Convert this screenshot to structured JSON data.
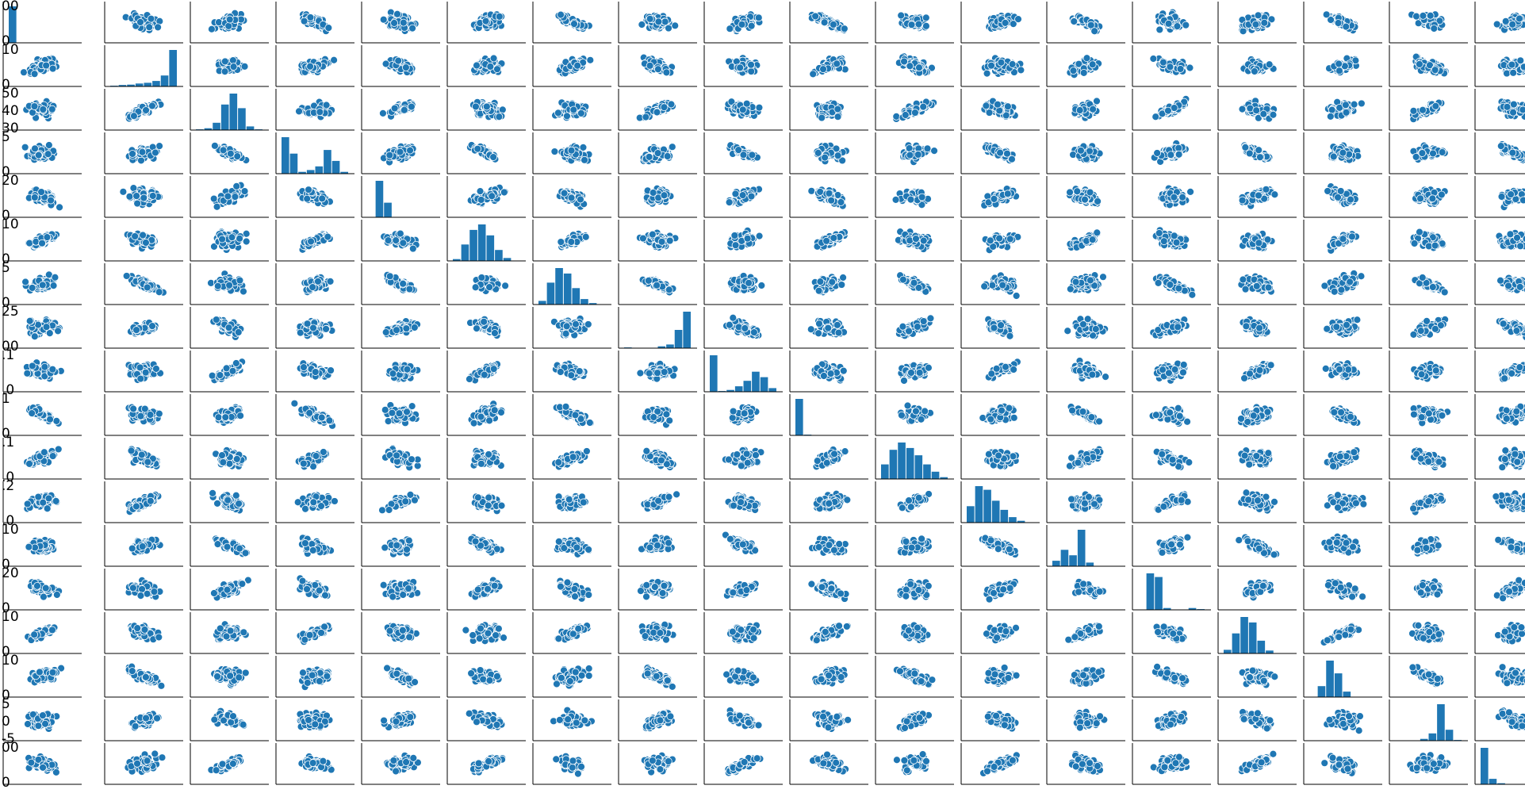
{
  "chart_data": {
    "type": "scatter",
    "kind": "pair-plot matrix",
    "diagonal_kind": "histogram",
    "variables": 18,
    "series_color": "#1f77b4",
    "marker_edge_color": "#ffffff",
    "grid": false,
    "legend": "none",
    "x_tick_labels_visible": false,
    "row_y_tick_labels": [
      [
        "00",
        "0"
      ],
      [
        "10",
        "0"
      ],
      [
        "50",
        "40",
        "30"
      ],
      [
        "5",
        "0"
      ],
      [
        "20",
        "0"
      ],
      [
        "10",
        "0"
      ],
      [
        "5",
        "0"
      ],
      [
        "25",
        "00"
      ],
      [
        ".1",
        ".0"
      ],
      [
        "1",
        "0"
      ],
      [
        ".1",
        ".0"
      ],
      [
        ".2",
        ".0"
      ],
      [
        "10",
        "0"
      ],
      [
        "20",
        "0"
      ],
      [
        "10",
        "0"
      ],
      [
        "10",
        "0"
      ],
      [
        "5",
        "0",
        "-5"
      ],
      [
        "00",
        "0"
      ]
    ],
    "diagonal_histograms": [
      [
        1.0,
        0.0,
        0.0,
        0.0,
        0.0,
        0.0,
        0.0,
        0.0
      ],
      [
        0.02,
        0.04,
        0.05,
        0.08,
        0.1,
        0.15,
        0.3,
        1.0
      ],
      [
        0.02,
        0.05,
        0.2,
        0.7,
        1.0,
        0.6,
        0.1,
        0.02
      ],
      [
        1.0,
        0.55,
        0.05,
        0.1,
        0.2,
        0.65,
        0.35,
        0.05
      ],
      [
        0.0,
        1.0,
        0.4,
        0.0,
        0.0,
        0.0,
        0.0,
        0.01
      ],
      [
        0.05,
        0.45,
        0.85,
        1.0,
        0.7,
        0.3,
        0.08,
        0.01
      ],
      [
        0.1,
        0.6,
        1.0,
        0.85,
        0.45,
        0.15,
        0.04,
        0.01
      ],
      [
        0.02,
        0.0,
        0.0,
        0.0,
        0.05,
        0.1,
        0.5,
        1.0
      ],
      [
        1.0,
        0.02,
        0.05,
        0.15,
        0.3,
        0.55,
        0.4,
        0.1
      ],
      [
        1.0,
        0.02,
        0.0,
        0.0,
        0.0,
        0.0,
        0.0,
        0.01
      ],
      [
        0.4,
        0.8,
        1.0,
        0.85,
        0.65,
        0.4,
        0.2,
        0.05
      ],
      [
        0.45,
        1.0,
        0.9,
        0.6,
        0.35,
        0.15,
        0.05,
        0.01
      ],
      [
        0.15,
        0.45,
        0.3,
        1.0,
        0.1,
        0.01,
        0.0,
        0.0
      ],
      [
        0.0,
        1.0,
        0.9,
        0.05,
        0.0,
        0.0,
        0.05,
        0.02
      ],
      [
        0.1,
        0.55,
        1.0,
        0.85,
        0.35,
        0.08,
        0.01,
        0.0
      ],
      [
        0.0,
        0.3,
        1.0,
        0.65,
        0.15,
        0.01,
        0.0,
        0.0
      ],
      [
        0.0,
        0.0,
        0.01,
        0.05,
        0.2,
        1.0,
        0.3,
        0.02
      ],
      [
        1.0,
        0.15,
        0.03,
        0.01,
        0.0,
        0.0,
        0.0,
        0.0
      ]
    ]
  }
}
